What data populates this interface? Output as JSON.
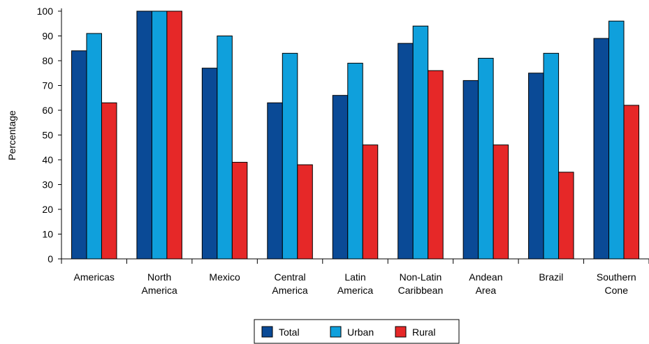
{
  "chart_data": {
    "type": "bar",
    "title": "",
    "xlabel": "",
    "ylabel": "Percentage",
    "ylim": [
      0,
      100
    ],
    "yticks": [
      0,
      10,
      20,
      30,
      40,
      50,
      60,
      70,
      80,
      90,
      100
    ],
    "categories": [
      [
        "Americas"
      ],
      [
        "North",
        "America"
      ],
      [
        "Mexico"
      ],
      [
        "Central",
        "America"
      ],
      [
        "Latin",
        "America"
      ],
      [
        "Non-Latin",
        "Caribbean"
      ],
      [
        "Andean",
        "Area"
      ],
      [
        "Brazil"
      ],
      [
        "Southern",
        "Cone"
      ]
    ],
    "series": [
      {
        "name": "Total",
        "color": "#0a4a96",
        "values": [
          84,
          100,
          77,
          63,
          66,
          87,
          72,
          75,
          89
        ]
      },
      {
        "name": "Urban",
        "color": "#0fa0dc",
        "values": [
          91,
          100,
          90,
          83,
          79,
          94,
          81,
          83,
          96
        ]
      },
      {
        "name": "Rural",
        "color": "#e62828",
        "values": [
          63,
          100,
          39,
          38,
          46,
          76,
          46,
          35,
          62
        ]
      }
    ],
    "grid": false,
    "legend": "bottom-center"
  }
}
